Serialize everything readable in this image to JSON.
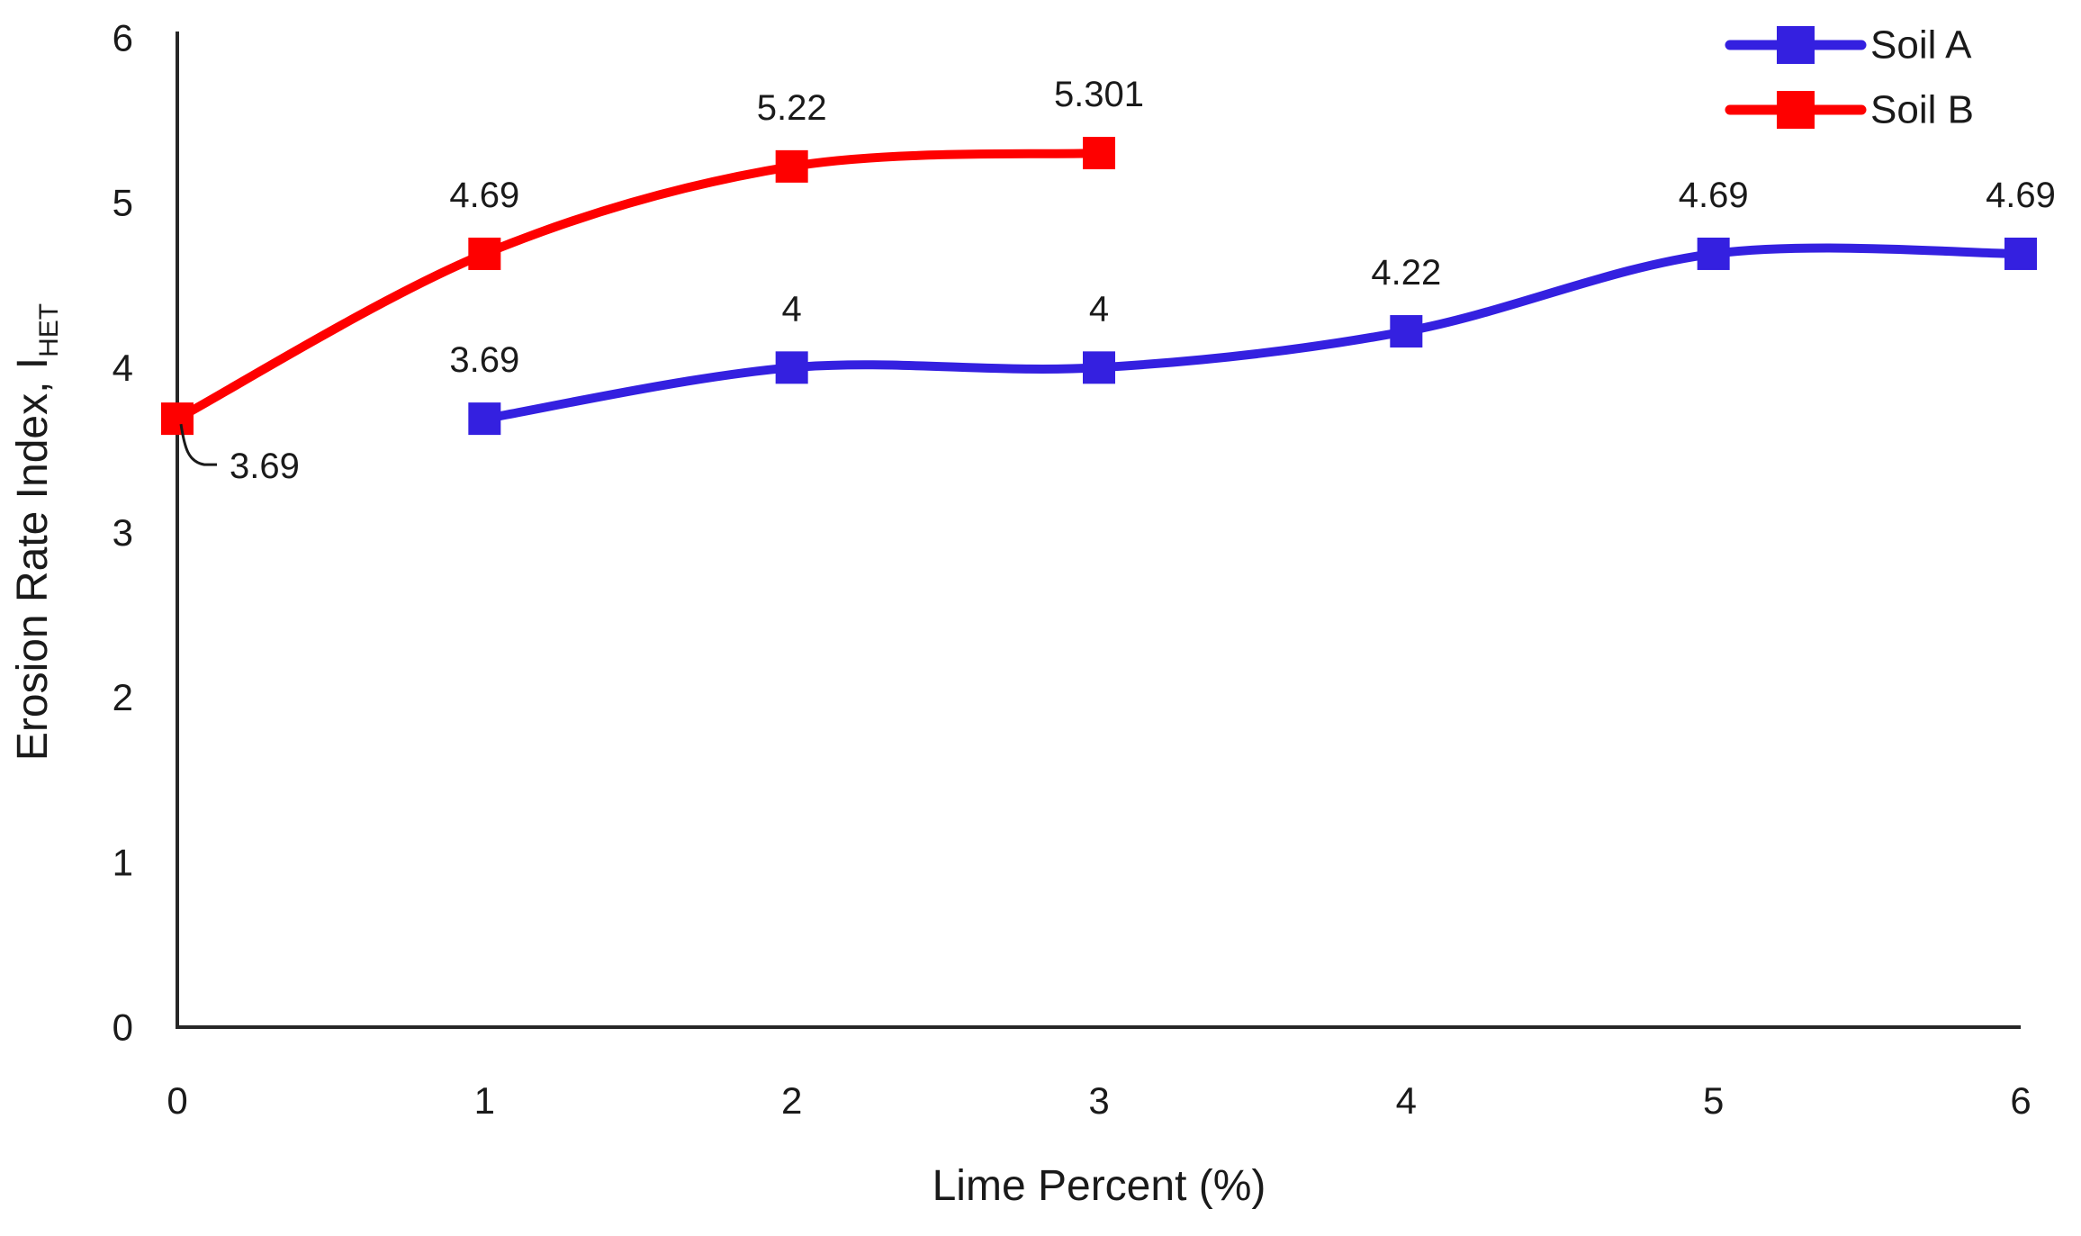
{
  "chart_data": {
    "type": "line",
    "title": "",
    "xlabel": "Lime Percent (%)",
    "ylabel": "Erosion Rate Index, I",
    "ylabel_subscript": "HET",
    "xlim": [
      0,
      6
    ],
    "ylim": [
      0,
      6
    ],
    "x_ticks": [
      "0",
      "1",
      "2",
      "3",
      "4",
      "5",
      "6"
    ],
    "y_ticks": [
      "0",
      "1",
      "2",
      "3",
      "4",
      "5",
      "6"
    ],
    "grid": false,
    "line_style": "smooth",
    "marker": "square",
    "legend_position": "top-right",
    "axis_color": "#262626",
    "series": [
      {
        "name": "Soil A",
        "color": "#3420E0",
        "x": [
          1,
          2,
          3,
          4,
          5,
          6
        ],
        "y": [
          3.69,
          4,
          4,
          4.22,
          4.69,
          4.69
        ],
        "labels": [
          "3.69",
          "4",
          "4",
          "4.22",
          "4.69",
          "4.69"
        ],
        "first_label_callout": false
      },
      {
        "name": "Soil B",
        "color": "#FE0000",
        "x": [
          0,
          1,
          2,
          3
        ],
        "y": [
          3.69,
          4.69,
          5.22,
          5.301
        ],
        "labels": [
          "3.69",
          "4.69",
          "5.22",
          "5.301"
        ],
        "first_label_callout": true
      }
    ]
  },
  "legend": {
    "entries": [
      {
        "label": "Soil A",
        "color": "#3420E0"
      },
      {
        "label": "Soil B",
        "color": "#FE0000"
      }
    ]
  }
}
